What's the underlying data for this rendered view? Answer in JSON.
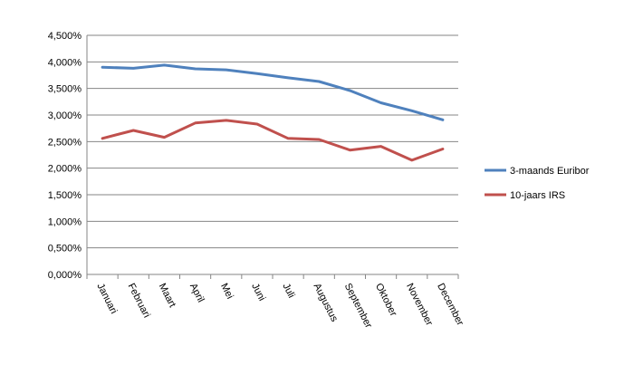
{
  "chart_data": {
    "type": "line",
    "title": "",
    "xlabel": "",
    "ylabel": "",
    "categories": [
      "Januari",
      "Februari",
      "Maart",
      "April",
      "Mei",
      "Juni",
      "Juli",
      "Augustus",
      "September",
      "Oktober",
      "November",
      "December"
    ],
    "ylim": [
      0,
      4.5
    ],
    "yticks": [
      "0,000%",
      "0,500%",
      "1,000%",
      "1,500%",
      "2,000%",
      "2,500%",
      "3,000%",
      "3,500%",
      "4,000%",
      "4,500%"
    ],
    "grid": "horizontal",
    "legend_position": "right",
    "series": [
      {
        "name": "3-maands Euribor",
        "color": "#4f81bd",
        "values": [
          3.9,
          3.88,
          3.94,
          3.87,
          3.85,
          3.78,
          3.7,
          3.63,
          3.46,
          3.23,
          3.08,
          2.91
        ]
      },
      {
        "name": "10-jaars IRS",
        "color": "#c0504d",
        "values": [
          2.56,
          2.71,
          2.58,
          2.85,
          2.9,
          2.83,
          2.56,
          2.54,
          2.34,
          2.41,
          2.15,
          2.36
        ]
      }
    ]
  }
}
